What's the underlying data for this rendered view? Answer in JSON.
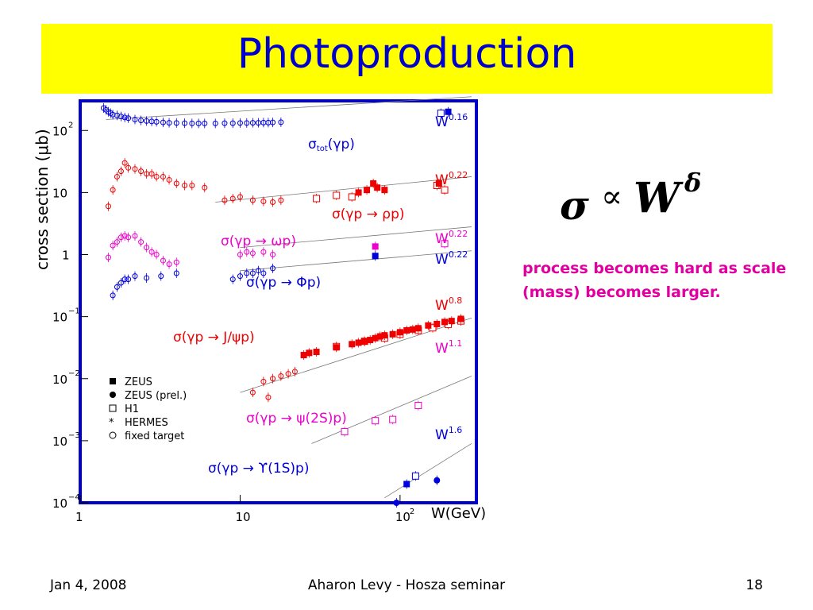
{
  "slide": {
    "title": "Photoproduction",
    "formula": {
      "sigma": "σ",
      "prop": "∝",
      "W": "W",
      "delta": "δ"
    },
    "note": " process becomes hard as scale (mass) becomes larger.",
    "footer": {
      "left": "Jan 4, 2008",
      "center": "Aharon Levy - Hosza seminar",
      "right": "18"
    }
  },
  "chart_data": {
    "type": "scatter",
    "xscale": "log",
    "yscale": "log",
    "xlim": [
      1,
      300
    ],
    "ylim": [
      0.0001,
      300
    ],
    "ylabel": "cross section (μb)",
    "xlabel": "W(GeV)",
    "xticks": [
      {
        "v": 1,
        "t": "1"
      },
      {
        "v": 10,
        "t": "10"
      },
      {
        "v": 100,
        "t": "10",
        "sup": "2"
      }
    ],
    "yticks": [
      {
        "v": 100,
        "t": "10",
        "sup": "2"
      },
      {
        "v": 10,
        "t": "10"
      },
      {
        "v": 1,
        "t": "1"
      },
      {
        "v": 0.1,
        "t": "10",
        "sup": "−1"
      },
      {
        "v": 0.01,
        "t": "10",
        "sup": "−2"
      },
      {
        "v": 0.001,
        "t": "10",
        "sup": "−3"
      },
      {
        "v": 0.0001,
        "t": "10",
        "sup": "−4"
      }
    ],
    "legend": {
      "placement": "lower-left",
      "entries": [
        {
          "marker": "filled-square",
          "label": "ZEUS"
        },
        {
          "marker": "filled-circle",
          "label": "ZEUS (prel.)"
        },
        {
          "marker": "open-square",
          "label": "H1"
        },
        {
          "marker": "star",
          "label": "HERMES"
        },
        {
          "marker": "open-circle",
          "label": "fixed target"
        }
      ]
    },
    "series": [
      {
        "name": "σtot(γp)",
        "color": "#0000dd",
        "fit": "W^0.16",
        "fit_line": [
          [
            1.45,
            150
          ],
          [
            280,
            350
          ]
        ],
        "label": "σ",
        "label_sub": "tot",
        "label_rest": "(γp)",
        "fixed_target": [
          [
            1.4,
            230
          ],
          [
            1.45,
            215
          ],
          [
            1.5,
            200
          ],
          [
            1.55,
            190
          ],
          [
            1.6,
            180
          ],
          [
            1.7,
            175
          ],
          [
            1.8,
            168
          ],
          [
            1.9,
            162
          ],
          [
            2.0,
            158
          ],
          [
            2.2,
            150
          ],
          [
            2.4,
            145
          ],
          [
            2.6,
            142
          ],
          [
            2.8,
            140
          ],
          [
            3.0,
            138
          ],
          [
            3.3,
            135
          ],
          [
            3.6,
            133
          ],
          [
            4.0,
            132
          ],
          [
            4.5,
            131
          ],
          [
            5,
            130
          ],
          [
            5.5,
            130
          ],
          [
            6,
            130
          ],
          [
            7,
            130
          ],
          [
            8,
            131
          ],
          [
            9,
            131
          ],
          [
            10,
            132
          ],
          [
            11,
            132
          ],
          [
            12,
            133
          ],
          [
            13,
            133
          ],
          [
            14,
            134
          ],
          [
            15,
            134
          ],
          [
            16,
            135
          ],
          [
            18,
            136
          ]
        ],
        "zeus": [
          [
            200,
            200
          ]
        ],
        "h1": [
          [
            180,
            190
          ]
        ]
      },
      {
        "name": "σ(γp → ρp)",
        "color": "#ee0000",
        "fit": "W^0.22",
        "fit_line": [
          [
            7,
            7
          ],
          [
            280,
            18
          ]
        ],
        "fixed_target": [
          [
            1.5,
            6
          ],
          [
            1.6,
            11
          ],
          [
            1.7,
            18
          ],
          [
            1.8,
            22
          ],
          [
            1.9,
            30
          ],
          [
            2.0,
            25
          ],
          [
            2.2,
            24
          ],
          [
            2.4,
            22
          ],
          [
            2.6,
            20
          ],
          [
            2.8,
            20
          ],
          [
            3.0,
            18
          ],
          [
            3.3,
            18
          ],
          [
            3.6,
            16
          ],
          [
            4.0,
            14
          ],
          [
            4.5,
            13
          ],
          [
            5,
            13
          ],
          [
            6,
            12
          ],
          [
            8,
            7.5
          ],
          [
            9,
            8
          ],
          [
            10,
            8.5
          ],
          [
            12,
            7.5
          ],
          [
            14,
            7.2
          ],
          [
            16,
            7
          ],
          [
            18,
            7.5
          ]
        ],
        "zeus": [
          [
            55,
            10
          ],
          [
            62,
            11
          ],
          [
            68,
            14
          ],
          [
            72,
            12
          ],
          [
            80,
            11
          ],
          [
            175,
            14
          ]
        ],
        "h1": [
          [
            30,
            8
          ],
          [
            40,
            9
          ],
          [
            50,
            8.5
          ],
          [
            170,
            13
          ],
          [
            190,
            11
          ]
        ]
      },
      {
        "name": "σ(γp → ωp)",
        "color": "#ee00cc",
        "fit": "W^0.22",
        "fit_line": [
          [
            10,
            1.3
          ],
          [
            280,
            2.8
          ]
        ],
        "fixed_target": [
          [
            1.5,
            0.9
          ],
          [
            1.6,
            1.4
          ],
          [
            1.7,
            1.6
          ],
          [
            1.8,
            1.9
          ],
          [
            1.9,
            2.0
          ],
          [
            2.0,
            1.9
          ],
          [
            2.2,
            2.0
          ],
          [
            2.4,
            1.6
          ],
          [
            2.6,
            1.3
          ],
          [
            2.8,
            1.1
          ],
          [
            3.0,
            1.0
          ],
          [
            3.3,
            0.8
          ],
          [
            3.6,
            0.7
          ],
          [
            4.0,
            0.75
          ],
          [
            10,
            1.0
          ],
          [
            11,
            1.1
          ],
          [
            12,
            1.05
          ],
          [
            14,
            1.1
          ],
          [
            16,
            1.0
          ]
        ],
        "zeus": [
          [
            70,
            1.35
          ]
        ],
        "h1": [
          [
            190,
            1.5
          ]
        ]
      },
      {
        "name": "σ(γp → Φp)",
        "color": "#0000dd",
        "fit": "W^0.22",
        "fit_line": [
          [
            10,
            0.55
          ],
          [
            280,
            1.15
          ]
        ],
        "fixed_target": [
          [
            1.6,
            0.22
          ],
          [
            1.7,
            0.3
          ],
          [
            1.8,
            0.35
          ],
          [
            1.9,
            0.4
          ],
          [
            2.0,
            0.4
          ],
          [
            2.2,
            0.45
          ],
          [
            2.6,
            0.42
          ],
          [
            3.2,
            0.45
          ],
          [
            4.0,
            0.5
          ],
          [
            9,
            0.4
          ],
          [
            10,
            0.45
          ],
          [
            11,
            0.5
          ],
          [
            12,
            0.5
          ],
          [
            13,
            0.55
          ],
          [
            14,
            0.5
          ],
          [
            16,
            0.6
          ]
        ],
        "zeus": [
          [
            70,
            0.95
          ]
        ]
      },
      {
        "name": "σ(γp → J/ψp)",
        "color": "#ee0000",
        "fit": "W^0.8",
        "fit_line": [
          [
            10,
            0.006
          ],
          [
            280,
            0.095
          ]
        ],
        "fixed_target": [
          [
            12,
            0.006
          ],
          [
            14,
            0.009
          ],
          [
            15,
            0.005
          ],
          [
            16,
            0.01
          ],
          [
            18,
            0.011
          ],
          [
            20,
            0.012
          ],
          [
            22,
            0.013
          ]
        ],
        "zeus": [
          [
            25,
            0.024
          ],
          [
            27,
            0.026
          ],
          [
            30,
            0.027
          ],
          [
            40,
            0.032
          ],
          [
            50,
            0.036
          ],
          [
            55,
            0.038
          ],
          [
            60,
            0.04
          ],
          [
            65,
            0.042
          ],
          [
            70,
            0.045
          ],
          [
            75,
            0.048
          ],
          [
            80,
            0.05
          ],
          [
            90,
            0.052
          ],
          [
            100,
            0.056
          ],
          [
            110,
            0.06
          ],
          [
            120,
            0.062
          ],
          [
            130,
            0.065
          ],
          [
            150,
            0.072
          ],
          [
            170,
            0.076
          ],
          [
            190,
            0.082
          ],
          [
            210,
            0.085
          ],
          [
            240,
            0.092
          ]
        ],
        "h1": [
          [
            40,
            0.033
          ],
          [
            60,
            0.04
          ],
          [
            80,
            0.045
          ],
          [
            100,
            0.052
          ],
          [
            130,
            0.06
          ],
          [
            160,
            0.066
          ],
          [
            200,
            0.075
          ],
          [
            240,
            0.085
          ]
        ]
      },
      {
        "name": "σ(γp → ψ(2S)p)",
        "color": "#ee00cc",
        "fit": "W^1.1",
        "fit_line": [
          [
            28,
            0.0009
          ],
          [
            280,
            0.011
          ]
        ],
        "h1": [
          [
            45,
            0.0014
          ],
          [
            70,
            0.0021
          ],
          [
            90,
            0.0022
          ],
          [
            130,
            0.0037
          ]
        ]
      },
      {
        "name": "σ(γp → ϒ(1S)p)",
        "color": "#0000dd",
        "fit": "W^1.6",
        "fit_line": [
          [
            80,
            0.00012
          ],
          [
            280,
            0.0009
          ]
        ],
        "zeus": [
          [
            110,
            0.0002
          ]
        ],
        "zeus_prel": [
          [
            95,
            0.0001
          ],
          [
            170,
            0.00023
          ]
        ],
        "h1": [
          [
            125,
            0.00027
          ]
        ]
      }
    ],
    "fit_labels": [
      "W",
      "0.16",
      "W",
      "0.22",
      "W",
      "0.22",
      "W",
      "0.22",
      "W",
      "0.8",
      "W",
      "1.1",
      "W",
      "1.6"
    ]
  }
}
